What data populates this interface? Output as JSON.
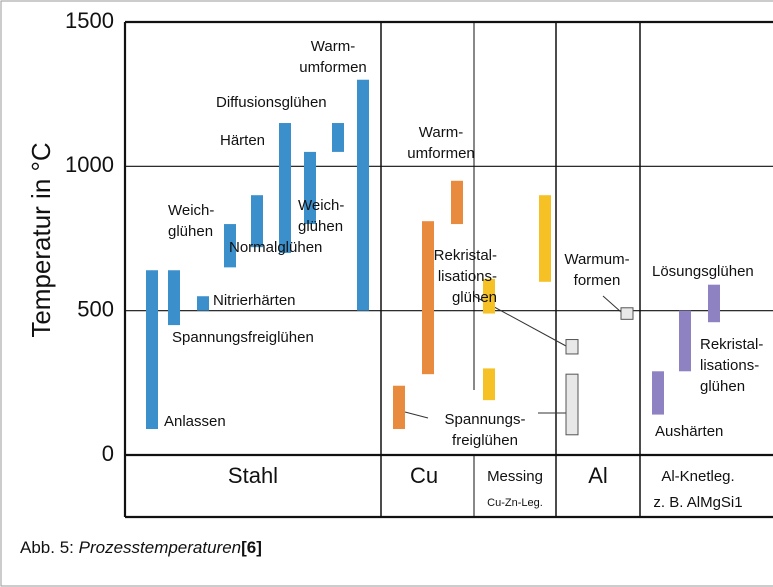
{
  "chart_data": {
    "type": "range-bar",
    "ylabel": "Temperatur in °C",
    "ylim": [
      0,
      1500
    ],
    "yticks": [
      0,
      500,
      1000,
      1500
    ],
    "grid": true,
    "series": [
      {
        "name": "Stahl",
        "color": "#3b8fcb",
        "values": [
          [
            90,
            640
          ],
          [
            450,
            640
          ],
          [
            500,
            550
          ],
          [
            650,
            800
          ],
          [
            720,
            900
          ],
          [
            700,
            1150
          ],
          [
            800,
            1050
          ],
          [
            1050,
            1150
          ],
          [
            500,
            1300
          ]
        ]
      },
      {
        "name": "Cu",
        "color": "#e98b3f",
        "values": [
          [
            90,
            240
          ],
          [
            280,
            810
          ],
          [
            800,
            950
          ]
        ]
      },
      {
        "name": "Messing",
        "sublabel": "Cu-Zn-Leg.",
        "color": "#f6c125",
        "values": [
          [
            190,
            300
          ],
          [
            490,
            610
          ],
          [
            600,
            900
          ]
        ]
      },
      {
        "name": "Al",
        "color": "#e8e8e8",
        "values": [
          [
            70,
            280
          ],
          [
            350,
            400
          ],
          [
            470,
            510
          ]
        ]
      },
      {
        "name": "Al-Knetleg.",
        "sublabel": "z. B. AlMgSi1",
        "color": "#8f82c2",
        "values": [
          [
            140,
            290
          ],
          [
            290,
            500
          ],
          [
            460,
            590
          ]
        ]
      }
    ],
    "annotations": [
      {
        "lines": [
          "Warm-",
          "umformen"
        ]
      },
      {
        "lines": [
          "Diffusionsglühen"
        ]
      },
      {
        "lines": [
          "Härten"
        ]
      },
      {
        "lines": [
          "Weich-",
          "glühen"
        ]
      },
      {
        "lines": [
          "Weich-",
          "glühen"
        ]
      },
      {
        "lines": [
          "Normalglühen"
        ]
      },
      {
        "lines": [
          "Nitrierhärten"
        ]
      },
      {
        "lines": [
          "Spannungsfreiglühen"
        ]
      },
      {
        "lines": [
          "Anlassen"
        ]
      },
      {
        "lines": [
          "Warm-",
          "umformen"
        ]
      },
      {
        "lines": [
          "Rekristal-",
          "lisations-",
          "glühen"
        ]
      },
      {
        "lines": [
          "Spannungs-",
          "freiglühen"
        ]
      },
      {
        "lines": [
          "Warmum-",
          "formen"
        ]
      },
      {
        "lines": [
          "Lösungsglühen"
        ]
      },
      {
        "lines": [
          "Rekristal-",
          "lisations-",
          "glühen"
        ]
      },
      {
        "lines": [
          "Aushärten"
        ]
      }
    ]
  },
  "caption": {
    "prefix": "Abb. 5: ",
    "title": "Prozesstemperaturen",
    "ref": "[6]"
  }
}
